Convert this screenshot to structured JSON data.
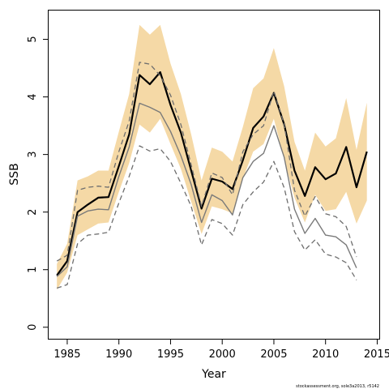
{
  "chart_data": {
    "type": "line",
    "xlabel": "Year",
    "ylabel": "SSB",
    "xlim": [
      1983.2,
      2015.2
    ],
    "ylim": [
      -0.2,
      5.5
    ],
    "xticks": [
      1985,
      1990,
      1995,
      2000,
      2005,
      2010,
      2015
    ],
    "yticks": [
      0,
      1,
      2,
      3,
      4,
      5
    ],
    "grid": false,
    "legend": "none",
    "colors": {
      "band": "#f5d9a6",
      "main": "#000000",
      "grey": "#7a7a7a",
      "dashed": "#6e6e6e"
    },
    "band": {
      "x": [
        1984,
        1985,
        1986,
        1987,
        1988,
        1989,
        1990,
        1991,
        1992,
        1993,
        1994,
        1995,
        1996,
        1997,
        1998,
        1999,
        2000,
        2001,
        2002,
        2003,
        2004,
        2005,
        2006,
        2007,
        2008,
        2009,
        2010,
        2011,
        2012,
        2013,
        2014
      ],
      "upper": [
        1.1,
        1.45,
        2.55,
        2.62,
        2.72,
        2.72,
        3.4,
        4.05,
        5.25,
        5.08,
        5.25,
        4.58,
        4.05,
        3.35,
        2.55,
        3.12,
        3.05,
        2.88,
        3.48,
        4.15,
        4.32,
        4.85,
        4.18,
        3.22,
        2.72,
        3.38,
        3.14,
        3.28,
        3.98,
        3.08,
        3.9
      ],
      "lower": [
        0.65,
        0.95,
        1.6,
        1.7,
        1.8,
        1.82,
        2.35,
        2.85,
        3.52,
        3.38,
        3.62,
        3.18,
        2.75,
        2.18,
        1.62,
        2.1,
        2.05,
        1.98,
        2.58,
        3.05,
        3.18,
        3.62,
        2.92,
        2.25,
        1.82,
        2.3,
        2.02,
        2.05,
        2.35,
        1.8,
        2.2
      ]
    },
    "series": [
      {
        "style": "solid-black",
        "x": [
          1984,
          1985,
          1986,
          1987,
          1988,
          1989,
          1990,
          1991,
          1992,
          1993,
          1994,
          1995,
          1996,
          1997,
          1998,
          1999,
          2000,
          2001,
          2002,
          2003,
          2004,
          2005,
          2006,
          2007,
          2008,
          2009,
          2010,
          2011,
          2012,
          2013,
          2014
        ],
        "y": [
          0.9,
          1.15,
          2.0,
          2.13,
          2.25,
          2.26,
          2.8,
          3.35,
          4.38,
          4.22,
          4.43,
          3.86,
          3.38,
          2.72,
          2.06,
          2.58,
          2.53,
          2.4,
          2.9,
          3.46,
          3.66,
          4.07,
          3.52,
          2.72,
          2.28,
          2.78,
          2.57,
          2.67,
          3.13,
          2.43,
          3.05
        ]
      },
      {
        "style": "solid-grey",
        "x": [
          1984,
          1985,
          1986,
          1987,
          1988,
          1989,
          1990,
          1991,
          1992,
          1993,
          1994,
          1995,
          1996,
          1997,
          1998,
          1999,
          2000,
          2001,
          2002,
          2003,
          2004,
          2005,
          2006,
          2007,
          2008,
          2009,
          2010,
          2011,
          2012,
          2013
        ],
        "y": [
          0.88,
          1.05,
          1.93,
          2.02,
          2.05,
          2.04,
          2.62,
          3.13,
          3.89,
          3.82,
          3.73,
          3.4,
          2.98,
          2.48,
          1.82,
          2.3,
          2.2,
          1.95,
          2.6,
          2.88,
          3.02,
          3.5,
          2.95,
          2.05,
          1.63,
          1.89,
          1.6,
          1.57,
          1.43,
          1.03
        ]
      },
      {
        "style": "dashed",
        "x": [
          1984,
          1985,
          1986,
          1987,
          1988,
          1989,
          1990,
          1991,
          1992,
          1993,
          1994,
          1995,
          1996,
          1997,
          1998,
          1999,
          2000,
          2001,
          2002,
          2003,
          2004,
          2005,
          2006,
          2007,
          2008,
          2009,
          2010,
          2011,
          2012,
          2013
        ],
        "y": [
          1.15,
          1.25,
          2.38,
          2.43,
          2.45,
          2.43,
          3.05,
          3.58,
          4.6,
          4.57,
          4.37,
          4.03,
          3.52,
          2.82,
          2.1,
          2.68,
          2.6,
          2.3,
          3.05,
          3.35,
          3.5,
          4.1,
          3.52,
          2.38,
          1.93,
          2.27,
          1.97,
          1.92,
          1.75,
          1.22
        ]
      },
      {
        "style": "dashed",
        "x": [
          1984,
          1985,
          1986,
          1987,
          1988,
          1989,
          1990,
          1991,
          1992,
          1993,
          1994,
          1995,
          1996,
          1997,
          1998,
          1999,
          2000,
          2001,
          2002,
          2003,
          2004,
          2005,
          2006,
          2007,
          2008,
          2009,
          2010,
          2011,
          2012,
          2013
        ],
        "y": [
          0.68,
          0.74,
          1.45,
          1.6,
          1.62,
          1.65,
          2.16,
          2.62,
          3.15,
          3.06,
          3.1,
          2.88,
          2.5,
          2.1,
          1.43,
          1.87,
          1.8,
          1.6,
          2.13,
          2.35,
          2.52,
          2.88,
          2.42,
          1.66,
          1.34,
          1.52,
          1.27,
          1.22,
          1.12,
          0.82
        ]
      }
    ],
    "credit": "stockassessment.org, sole3a2013, r5142"
  }
}
